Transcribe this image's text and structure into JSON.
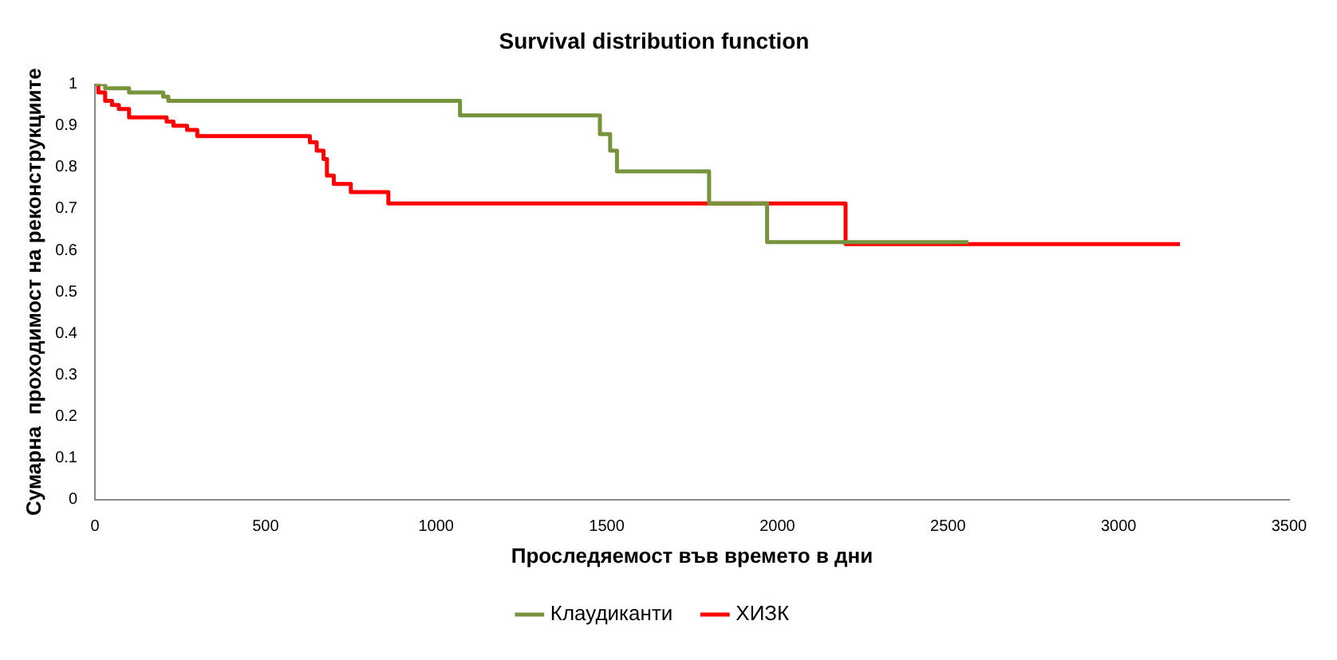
{
  "chart_data": {
    "type": "step",
    "title": "Survival distribution function",
    "xlabel": "Проследяемост във времето в дни",
    "ylabel": "Сумарна  проходимост на реконструкциите",
    "series": [
      {
        "name": "Клаудиканти",
        "color": "#77933c",
        "x": [
          0,
          30,
          100,
          200,
          215,
          1070,
          1480,
          1510,
          1530,
          1800,
          1970,
          2560
        ],
        "values": [
          1,
          0.99,
          0.98,
          0.97,
          0.96,
          0.925,
          0.88,
          0.84,
          0.79,
          0.713,
          0.62,
          0.62
        ]
      },
      {
        "name": "ХИЗК",
        "color": "#ff0000",
        "x": [
          0,
          10,
          30,
          50,
          70,
          100,
          210,
          230,
          270,
          300,
          630,
          650,
          670,
          680,
          700,
          750,
          860,
          2200,
          3180
        ],
        "values": [
          1,
          0.98,
          0.96,
          0.95,
          0.94,
          0.92,
          0.91,
          0.9,
          0.89,
          0.875,
          0.86,
          0.84,
          0.82,
          0.78,
          0.76,
          0.74,
          0.713,
          0.615,
          0.615
        ]
      }
    ],
    "xlim": [
      0,
      3500
    ],
    "xticks": [
      0,
      500,
      1000,
      1500,
      2000,
      2500,
      3000,
      3500
    ],
    "ylim": [
      0,
      1
    ],
    "yticks": [
      0,
      0.1,
      0.2,
      0.3,
      0.4,
      0.5,
      0.6,
      0.7,
      0.8,
      0.9,
      1
    ],
    "grid": false,
    "legend": "bottom",
    "marker": "none",
    "line_style": "solid"
  }
}
